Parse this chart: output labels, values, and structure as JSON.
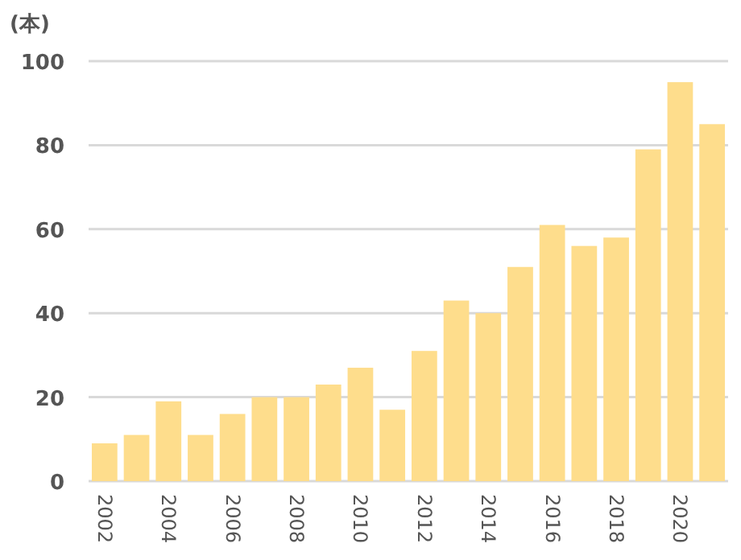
{
  "chart_data": {
    "type": "bar",
    "ylabel": "(本)",
    "categories": [
      "2002",
      null,
      "2004",
      null,
      "2006",
      null,
      "2008",
      null,
      "2010",
      null,
      "2012",
      null,
      "2014",
      null,
      "2016",
      null,
      "2018",
      null,
      "2020",
      null
    ],
    "values": [
      9,
      11,
      19,
      11,
      16,
      20,
      20,
      23,
      27,
      17,
      31,
      43,
      40,
      51,
      61,
      56,
      58,
      79,
      95,
      85
    ],
    "color": "#fedd8c",
    "ylim": [
      0,
      100
    ],
    "yticks": [
      0,
      20,
      40,
      60,
      80,
      100
    ],
    "grid": "y"
  }
}
